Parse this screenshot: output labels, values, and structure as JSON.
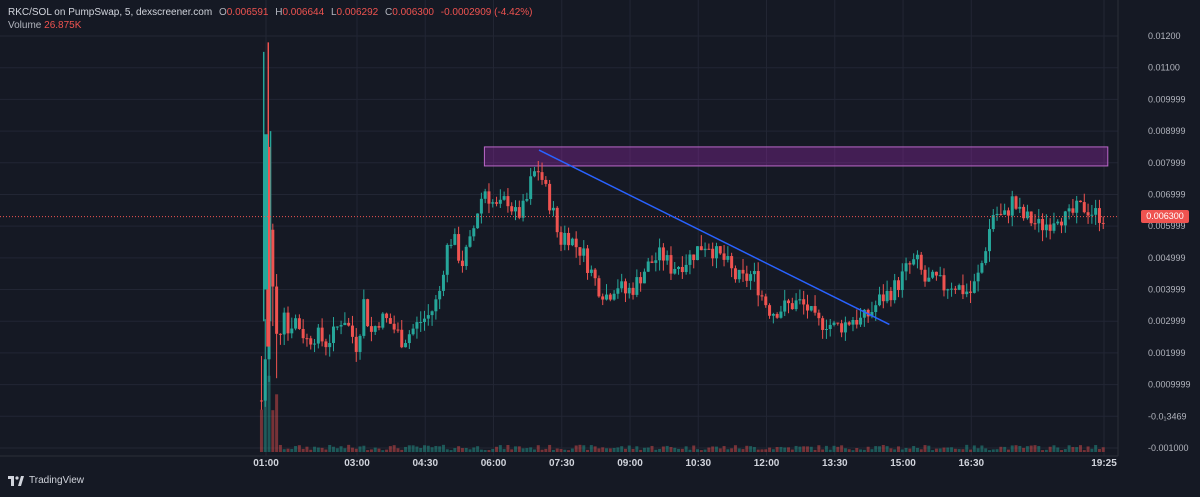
{
  "header": {
    "symbol": "RKC/SOL on PumpSwap, 5, dexscreener.com",
    "open_label": "O",
    "open": "0.006591",
    "high_label": "H",
    "high": "0.006644",
    "low_label": "L",
    "low": "0.006292",
    "close_label": "C",
    "close": "0.006300",
    "change": "-0.0002909 (-4.42%)",
    "volume_label": "Volume",
    "volume": "26.875K"
  },
  "branding": {
    "name": "TradingView"
  },
  "colors": {
    "background": "#151924",
    "up": "#26a69a",
    "down": "#ef5350",
    "trendline": "#2962ff",
    "zone": "#9c27b0"
  },
  "chart_data": {
    "type": "candlestick",
    "y_ticks": [
      "0.01200",
      "0.01100",
      "0.009999",
      "0.008999",
      "0.007999",
      "0.006999",
      "0.005999",
      "0.004999",
      "0.003999",
      "0.002999",
      "0.001999",
      "0.0009999",
      "-0.0₁3469",
      "-0.001000"
    ],
    "y_tick_values": [
      0.012,
      0.011,
      0.01,
      0.009,
      0.008,
      0.007,
      0.006,
      0.005,
      0.004,
      0.003,
      0.002,
      0.001,
      0.0,
      -0.001
    ],
    "ylim": [
      -0.001,
      0.0125
    ],
    "x_ticks": [
      "01:00",
      "03:00",
      "04:30",
      "06:00",
      "07:30",
      "09:00",
      "10:30",
      "12:00",
      "13:30",
      "15:00",
      "16:30",
      "19:25"
    ],
    "x_tick_hours": [
      1.0,
      3.0,
      4.5,
      6.0,
      7.5,
      9.0,
      10.5,
      12.0,
      13.5,
      15.0,
      16.5,
      19.4167
    ],
    "xlim_hours": [
      -1.35,
      19.6
    ],
    "last_price": "0.006300",
    "close_path": [
      [
        0.9,
        0.0005
      ],
      [
        0.95,
        0.0015
      ],
      [
        1.0,
        0.002
      ],
      [
        1.05,
        0.0045
      ],
      [
        1.1,
        0.0085
      ],
      [
        1.15,
        0.004
      ],
      [
        1.25,
        0.0022
      ],
      [
        1.4,
        0.0035
      ],
      [
        1.5,
        0.0025
      ],
      [
        1.6,
        0.0032
      ],
      [
        1.75,
        0.0028
      ],
      [
        1.9,
        0.0024
      ],
      [
        2.1,
        0.0026
      ],
      [
        2.3,
        0.0023
      ],
      [
        2.5,
        0.0026
      ],
      [
        2.7,
        0.0032
      ],
      [
        2.85,
        0.0027
      ],
      [
        3.0,
        0.0022
      ],
      [
        3.15,
        0.0036
      ],
      [
        3.3,
        0.0026
      ],
      [
        3.5,
        0.0031
      ],
      [
        3.7,
        0.003
      ],
      [
        3.9,
        0.0026
      ],
      [
        4.0,
        0.0024
      ],
      [
        4.2,
        0.0027
      ],
      [
        4.4,
        0.003
      ],
      [
        4.6,
        0.0032
      ],
      [
        4.8,
        0.0038
      ],
      [
        4.95,
        0.0052
      ],
      [
        5.1,
        0.0057
      ],
      [
        5.3,
        0.0048
      ],
      [
        5.5,
        0.0055
      ],
      [
        5.65,
        0.0065
      ],
      [
        5.8,
        0.0072
      ],
      [
        5.95,
        0.0068
      ],
      [
        6.1,
        0.0065
      ],
      [
        6.3,
        0.0069
      ],
      [
        6.5,
        0.0063
      ],
      [
        6.7,
        0.0066
      ],
      [
        6.85,
        0.0076
      ],
      [
        7.0,
        0.0078
      ],
      [
        7.15,
        0.0071
      ],
      [
        7.3,
        0.0065
      ],
      [
        7.45,
        0.0055
      ],
      [
        7.6,
        0.0058
      ],
      [
        7.8,
        0.0054
      ],
      [
        7.95,
        0.0052
      ],
      [
        8.1,
        0.0047
      ],
      [
        8.3,
        0.0041
      ],
      [
        8.5,
        0.0038
      ],
      [
        8.7,
        0.0042
      ],
      [
        8.9,
        0.0039
      ],
      [
        9.1,
        0.0041
      ],
      [
        9.3,
        0.0046
      ],
      [
        9.5,
        0.0049
      ],
      [
        9.7,
        0.0051
      ],
      [
        9.9,
        0.0047
      ],
      [
        10.1,
        0.0048
      ],
      [
        10.3,
        0.005
      ],
      [
        10.5,
        0.0053
      ],
      [
        10.7,
        0.0055
      ],
      [
        10.9,
        0.0051
      ],
      [
        11.1,
        0.0049
      ],
      [
        11.3,
        0.0044
      ],
      [
        11.5,
        0.0043
      ],
      [
        11.7,
        0.0045
      ],
      [
        11.9,
        0.0038
      ],
      [
        12.1,
        0.0033
      ],
      [
        12.3,
        0.0034
      ],
      [
        12.5,
        0.0035
      ],
      [
        12.7,
        0.0036
      ],
      [
        12.9,
        0.0034
      ],
      [
        13.1,
        0.0029
      ],
      [
        13.3,
        0.003
      ],
      [
        13.5,
        0.0028
      ],
      [
        13.7,
        0.0029
      ],
      [
        13.9,
        0.0031
      ],
      [
        14.1,
        0.003
      ],
      [
        14.3,
        0.0033
      ],
      [
        14.5,
        0.0037
      ],
      [
        14.7,
        0.0039
      ],
      [
        14.9,
        0.0042
      ],
      [
        15.1,
        0.0047
      ],
      [
        15.3,
        0.0049
      ],
      [
        15.5,
        0.0042
      ],
      [
        15.7,
        0.0043
      ],
      [
        15.9,
        0.0041
      ],
      [
        16.1,
        0.0042
      ],
      [
        16.3,
        0.004
      ],
      [
        16.5,
        0.0039
      ],
      [
        16.7,
        0.0046
      ],
      [
        16.85,
        0.0056
      ],
      [
        17.0,
        0.0065
      ],
      [
        17.2,
        0.0062
      ],
      [
        17.4,
        0.0068
      ],
      [
        17.6,
        0.0063
      ],
      [
        17.8,
        0.0062
      ],
      [
        18.0,
        0.006
      ],
      [
        18.2,
        0.0061
      ],
      [
        18.4,
        0.0064
      ],
      [
        18.6,
        0.0062
      ],
      [
        18.8,
        0.0065
      ],
      [
        19.0,
        0.0066
      ],
      [
        19.2,
        0.0064
      ],
      [
        19.42,
        0.0063
      ]
    ],
    "spike_wicks": [
      [
        0.95,
        0.0115
      ],
      [
        1.05,
        0.0118
      ],
      [
        1.1,
        0.009
      ]
    ],
    "supply_zone": {
      "y_low": 0.0079,
      "y_high": 0.0085,
      "x_start": 5.8,
      "x_end": 19.5
    },
    "trendline": [
      [
        7.0,
        0.0084
      ],
      [
        14.7,
        0.0029
      ]
    ]
  }
}
